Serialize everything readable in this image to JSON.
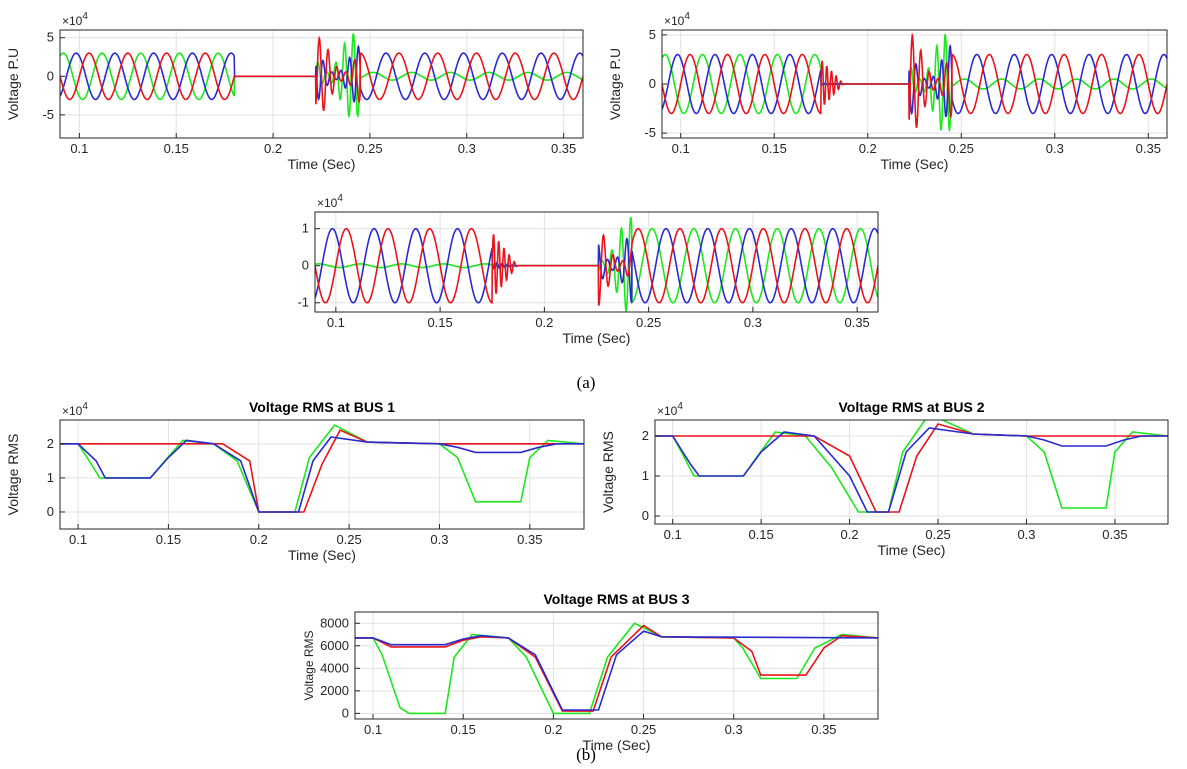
{
  "figure": {
    "caption_a": "(a)",
    "caption_b": "(b)"
  },
  "chart_data": [
    {
      "type": "line",
      "title": "",
      "xlabel": "Time (Sec)",
      "ylabel": "Voltage P.U",
      "y_exponent_label": "×10",
      "y_exponent_power": "4",
      "xlim": [
        0.09,
        0.36
      ],
      "ylim": [
        -8,
        6
      ],
      "xticks": [
        0.1,
        0.15,
        0.2,
        0.25,
        0.3,
        0.35
      ],
      "xtick_labels": [
        "0.1",
        "0.15",
        "0.2",
        "0.25",
        "0.3",
        "0.35"
      ],
      "yticks": [
        -5,
        0,
        5
      ],
      "ytick_labels": [
        "-5",
        "0",
        "5"
      ],
      "grid": true,
      "kind": "waveform",
      "series": [
        {
          "color": "#e8141c",
          "values": []
        },
        {
          "color": "#2a2ad0",
          "values": []
        },
        {
          "color": "#1de81d",
          "values": []
        }
      ],
      "segments": [
        {
          "from": 0.09,
          "to": 0.18,
          "amp": [
            3,
            3,
            3
          ],
          "mode": "sine"
        },
        {
          "from": 0.18,
          "to": 0.222,
          "amp": [
            0,
            0,
            0
          ],
          "mode": "flat"
        },
        {
          "from": 0.222,
          "to": 0.245,
          "amp": [
            5,
            4,
            5.5
          ],
          "mode": "transient"
        },
        {
          "from": 0.245,
          "to": 0.36,
          "amp": [
            3,
            3,
            0.5
          ],
          "mode": "sine"
        }
      ]
    },
    {
      "type": "line",
      "title": "",
      "xlabel": "Time (Sec)",
      "ylabel": "Voltage P.U",
      "y_exponent_label": "×10",
      "y_exponent_power": "4",
      "xlim": [
        0.09,
        0.36
      ],
      "ylim": [
        -5.5,
        5.5
      ],
      "xticks": [
        0.1,
        0.15,
        0.2,
        0.25,
        0.3,
        0.35
      ],
      "xtick_labels": [
        "0.1",
        "0.15",
        "0.2",
        "0.25",
        "0.3",
        "0.35"
      ],
      "yticks": [
        -5,
        0,
        5
      ],
      "ytick_labels": [
        "-5",
        "0",
        "5"
      ],
      "grid": true,
      "kind": "waveform",
      "series": [
        {
          "color": "#e8141c",
          "values": []
        },
        {
          "color": "#2a2ad0",
          "values": []
        },
        {
          "color": "#1de81d",
          "values": []
        }
      ],
      "segments": [
        {
          "from": 0.09,
          "to": 0.175,
          "amp": [
            3,
            3,
            3
          ],
          "mode": "sine"
        },
        {
          "from": 0.175,
          "to": 0.187,
          "amp": [
            2.5,
            0.1,
            0.1
          ],
          "mode": "decay"
        },
        {
          "from": 0.187,
          "to": 0.222,
          "amp": [
            0,
            0,
            0
          ],
          "mode": "flat"
        },
        {
          "from": 0.222,
          "to": 0.245,
          "amp": [
            5,
            4,
            5
          ],
          "mode": "transient"
        },
        {
          "from": 0.245,
          "to": 0.36,
          "amp": [
            3,
            3,
            0.5
          ],
          "mode": "sine"
        }
      ]
    },
    {
      "type": "line",
      "title": "",
      "xlabel": "Time (Sec)",
      "ylabel": "",
      "y_exponent_label": "×10",
      "y_exponent_power": "4",
      "xlim": [
        0.09,
        0.36
      ],
      "ylim": [
        -1.25,
        1.45
      ],
      "xticks": [
        0.1,
        0.15,
        0.2,
        0.25,
        0.3,
        0.35
      ],
      "xtick_labels": [
        "0.1",
        "0.15",
        "0.2",
        "0.25",
        "0.3",
        "0.35"
      ],
      "yticks": [
        -1,
        0,
        1
      ],
      "ytick_labels": [
        "-1",
        "0",
        "1"
      ],
      "grid": true,
      "kind": "waveform",
      "series": [
        {
          "color": "#e8141c",
          "values": []
        },
        {
          "color": "#2a2ad0",
          "values": []
        },
        {
          "color": "#1de81d",
          "values": []
        }
      ],
      "segments": [
        {
          "from": 0.09,
          "to": 0.175,
          "amp": [
            1,
            1,
            0.05
          ],
          "mode": "sine"
        },
        {
          "from": 0.175,
          "to": 0.187,
          "amp": [
            0.9,
            0.1,
            0.05
          ],
          "mode": "decay"
        },
        {
          "from": 0.187,
          "to": 0.226,
          "amp": [
            0,
            0,
            0
          ],
          "mode": "flat"
        },
        {
          "from": 0.226,
          "to": 0.242,
          "amp": [
            1.2,
            1.2,
            1.3
          ],
          "mode": "transient"
        },
        {
          "from": 0.242,
          "to": 0.36,
          "amp": [
            1,
            1,
            1
          ],
          "mode": "sine"
        }
      ]
    },
    {
      "type": "line",
      "title": "Voltage RMS at BUS 1",
      "xlabel": "Time (Sec)",
      "ylabel": "Voltage RMS",
      "y_exponent_label": "×10",
      "y_exponent_power": "4",
      "xlim": [
        0.09,
        0.38
      ],
      "ylim": [
        -0.5,
        2.7
      ],
      "xticks": [
        0.1,
        0.15,
        0.2,
        0.25,
        0.3,
        0.35
      ],
      "xtick_labels": [
        "0.1",
        "0.15",
        "0.2",
        "0.25",
        "0.3",
        "0.35"
      ],
      "yticks": [
        0,
        1,
        2
      ],
      "ytick_labels": [
        "0",
        "1",
        "2"
      ],
      "grid": true,
      "kind": "rms",
      "series": [
        {
          "color": "#e8141c",
          "points": [
            [
              0.09,
              2
            ],
            [
              0.16,
              2
            ],
            [
              0.18,
              2
            ],
            [
              0.195,
              1.5
            ],
            [
              0.2,
              0
            ],
            [
              0.225,
              0
            ],
            [
              0.235,
              1.4
            ],
            [
              0.245,
              2.4
            ],
            [
              0.26,
              2.05
            ],
            [
              0.3,
              2.0
            ],
            [
              0.38,
              2.0
            ]
          ]
        },
        {
          "color": "#2a2ad0",
          "points": [
            [
              0.09,
              2
            ],
            [
              0.1,
              2
            ],
            [
              0.11,
              1.5
            ],
            [
              0.115,
              1.0
            ],
            [
              0.14,
              1.0
            ],
            [
              0.15,
              1.6
            ],
            [
              0.16,
              2.1
            ],
            [
              0.175,
              2.0
            ],
            [
              0.19,
              1.5
            ],
            [
              0.2,
              0
            ],
            [
              0.222,
              0
            ],
            [
              0.23,
              1.5
            ],
            [
              0.24,
              2.2
            ],
            [
              0.26,
              2.05
            ],
            [
              0.3,
              2.0
            ],
            [
              0.31,
              1.9
            ],
            [
              0.32,
              1.75
            ],
            [
              0.345,
              1.75
            ],
            [
              0.355,
              1.9
            ],
            [
              0.365,
              2.0
            ],
            [
              0.38,
              2.0
            ]
          ]
        },
        {
          "color": "#1de81d",
          "points": [
            [
              0.09,
              2
            ],
            [
              0.1,
              2
            ],
            [
              0.105,
              1.6
            ],
            [
              0.112,
              1.0
            ],
            [
              0.14,
              1.0
            ],
            [
              0.148,
              1.5
            ],
            [
              0.158,
              2.1
            ],
            [
              0.175,
              2.0
            ],
            [
              0.188,
              1.5
            ],
            [
              0.2,
              0
            ],
            [
              0.22,
              0
            ],
            [
              0.228,
              1.6
            ],
            [
              0.242,
              2.55
            ],
            [
              0.26,
              2.05
            ],
            [
              0.3,
              2.0
            ],
            [
              0.31,
              1.6
            ],
            [
              0.32,
              0.3
            ],
            [
              0.345,
              0.3
            ],
            [
              0.35,
              1.6
            ],
            [
              0.36,
              2.1
            ],
            [
              0.38,
              2.0
            ]
          ]
        }
      ]
    },
    {
      "type": "line",
      "title": "Voltage RMS at BUS 2",
      "xlabel": "Time (Sec)",
      "ylabel": "Voltage RMS",
      "y_exponent_label": "×10",
      "y_exponent_power": "4",
      "xlim": [
        0.09,
        0.38
      ],
      "ylim": [
        -0.2,
        2.4
      ],
      "xticks": [
        0.1,
        0.15,
        0.2,
        0.25,
        0.3,
        0.35
      ],
      "xtick_labels": [
        "0.1",
        "0.15",
        "0.2",
        "0.25",
        "0.3",
        "0.35"
      ],
      "yticks": [
        0,
        1,
        2
      ],
      "ytick_labels": [
        "0",
        "1",
        "2"
      ],
      "grid": true,
      "kind": "rms",
      "series": [
        {
          "color": "#e8141c",
          "points": [
            [
              0.09,
              2
            ],
            [
              0.18,
              2
            ],
            [
              0.2,
              1.5
            ],
            [
              0.215,
              0.1
            ],
            [
              0.228,
              0.1
            ],
            [
              0.238,
              1.5
            ],
            [
              0.25,
              2.3
            ],
            [
              0.27,
              2.05
            ],
            [
              0.3,
              2.0
            ],
            [
              0.38,
              2.0
            ]
          ]
        },
        {
          "color": "#2a2ad0",
          "points": [
            [
              0.09,
              2
            ],
            [
              0.1,
              2
            ],
            [
              0.11,
              1.3
            ],
            [
              0.115,
              1.0
            ],
            [
              0.14,
              1.0
            ],
            [
              0.15,
              1.6
            ],
            [
              0.163,
              2.1
            ],
            [
              0.18,
              2.0
            ],
            [
              0.2,
              1.0
            ],
            [
              0.21,
              0.1
            ],
            [
              0.222,
              0.1
            ],
            [
              0.232,
              1.6
            ],
            [
              0.245,
              2.2
            ],
            [
              0.27,
              2.05
            ],
            [
              0.3,
              2.0
            ],
            [
              0.31,
              1.9
            ],
            [
              0.32,
              1.75
            ],
            [
              0.345,
              1.75
            ],
            [
              0.355,
              1.9
            ],
            [
              0.365,
              2.0
            ],
            [
              0.38,
              2.0
            ]
          ]
        },
        {
          "color": "#1de81d",
          "points": [
            [
              0.09,
              2
            ],
            [
              0.1,
              2
            ],
            [
              0.105,
              1.6
            ],
            [
              0.112,
              1.0
            ],
            [
              0.14,
              1.0
            ],
            [
              0.148,
              1.5
            ],
            [
              0.158,
              2.1
            ],
            [
              0.175,
              2.0
            ],
            [
              0.19,
              1.2
            ],
            [
              0.205,
              0.1
            ],
            [
              0.222,
              0.1
            ],
            [
              0.23,
              1.6
            ],
            [
              0.245,
              2.55
            ],
            [
              0.27,
              2.05
            ],
            [
              0.3,
              2.0
            ],
            [
              0.31,
              1.6
            ],
            [
              0.32,
              0.2
            ],
            [
              0.345,
              0.2
            ],
            [
              0.35,
              1.6
            ],
            [
              0.36,
              2.1
            ],
            [
              0.38,
              2.0
            ]
          ]
        }
      ]
    },
    {
      "type": "line",
      "title": "Voltage RMS at BUS 3",
      "xlabel": "Time (Sec)",
      "ylabel": "Voltage RMS",
      "y_exponent_label": "",
      "y_exponent_power": "",
      "xlim": [
        0.09,
        0.38
      ],
      "ylim": [
        -500,
        9000
      ],
      "xticks": [
        0.1,
        0.15,
        0.2,
        0.25,
        0.3,
        0.35
      ],
      "xtick_labels": [
        "0.1",
        "0.15",
        "0.2",
        "0.25",
        "0.3",
        "0.35"
      ],
      "yticks": [
        0,
        2000,
        4000,
        6000,
        8000
      ],
      "ytick_labels": [
        "0",
        "2000",
        "4000",
        "6000",
        "8000"
      ],
      "grid": true,
      "kind": "rms",
      "series": [
        {
          "color": "#e8141c",
          "points": [
            [
              0.09,
              6700
            ],
            [
              0.1,
              6700
            ],
            [
              0.11,
              5900
            ],
            [
              0.14,
              5900
            ],
            [
              0.15,
              6500
            ],
            [
              0.16,
              6800
            ],
            [
              0.175,
              6700
            ],
            [
              0.19,
              5000
            ],
            [
              0.205,
              200
            ],
            [
              0.222,
              200
            ],
            [
              0.232,
              5000
            ],
            [
              0.25,
              7800
            ],
            [
              0.26,
              6800
            ],
            [
              0.3,
              6700
            ],
            [
              0.31,
              5500
            ],
            [
              0.315,
              3400
            ],
            [
              0.34,
              3400
            ],
            [
              0.35,
              5800
            ],
            [
              0.36,
              6900
            ],
            [
              0.38,
              6700
            ]
          ]
        },
        {
          "color": "#2a2ad0",
          "points": [
            [
              0.09,
              6700
            ],
            [
              0.1,
              6700
            ],
            [
              0.11,
              6100
            ],
            [
              0.14,
              6100
            ],
            [
              0.15,
              6600
            ],
            [
              0.16,
              6900
            ],
            [
              0.175,
              6700
            ],
            [
              0.19,
              5200
            ],
            [
              0.205,
              300
            ],
            [
              0.225,
              300
            ],
            [
              0.235,
              5200
            ],
            [
              0.25,
              7300
            ],
            [
              0.26,
              6800
            ],
            [
              0.38,
              6700
            ]
          ]
        },
        {
          "color": "#1de81d",
          "points": [
            [
              0.09,
              6700
            ],
            [
              0.1,
              6700
            ],
            [
              0.105,
              5200
            ],
            [
              0.115,
              500
            ],
            [
              0.12,
              0
            ],
            [
              0.14,
              0
            ],
            [
              0.145,
              5000
            ],
            [
              0.155,
              7000
            ],
            [
              0.175,
              6700
            ],
            [
              0.185,
              5000
            ],
            [
              0.2,
              0
            ],
            [
              0.22,
              0
            ],
            [
              0.23,
              5000
            ],
            [
              0.245,
              8000
            ],
            [
              0.26,
              6800
            ],
            [
              0.3,
              6700
            ],
            [
              0.305,
              5800
            ],
            [
              0.315,
              3100
            ],
            [
              0.335,
              3100
            ],
            [
              0.345,
              5800
            ],
            [
              0.36,
              7000
            ],
            [
              0.38,
              6700
            ]
          ]
        }
      ]
    }
  ]
}
